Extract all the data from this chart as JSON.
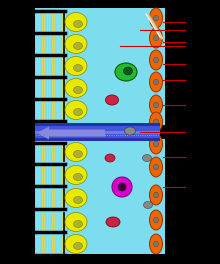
{
  "bg_color": "#000000",
  "cyan_bg": "#7BDDEE",
  "choanocyte_yellow": "#E8E800",
  "choanocyte_nucleus": "#B0B030",
  "collar_yellow": "#D8D860",
  "pinacocyte_orange": "#EE6600",
  "pinacocyte_nucleus": "#777777",
  "green_cell": "#22BB33",
  "green_nucleus": "#115522",
  "red_cell": "#CC2244",
  "magenta_cell": "#DD00CC",
  "magenta_nucleus": "#330033",
  "gray_cell": "#888888",
  "canal_dark": "#2233AA",
  "canal_mid": "#4455DD",
  "canal_light": "#8899EE",
  "arrow_color": "#8888DD",
  "spicule_color": "#CCCCAA",
  "label_line": "#CC0000",
  "figw": 2.2,
  "figh": 2.64,
  "dpi": 100
}
